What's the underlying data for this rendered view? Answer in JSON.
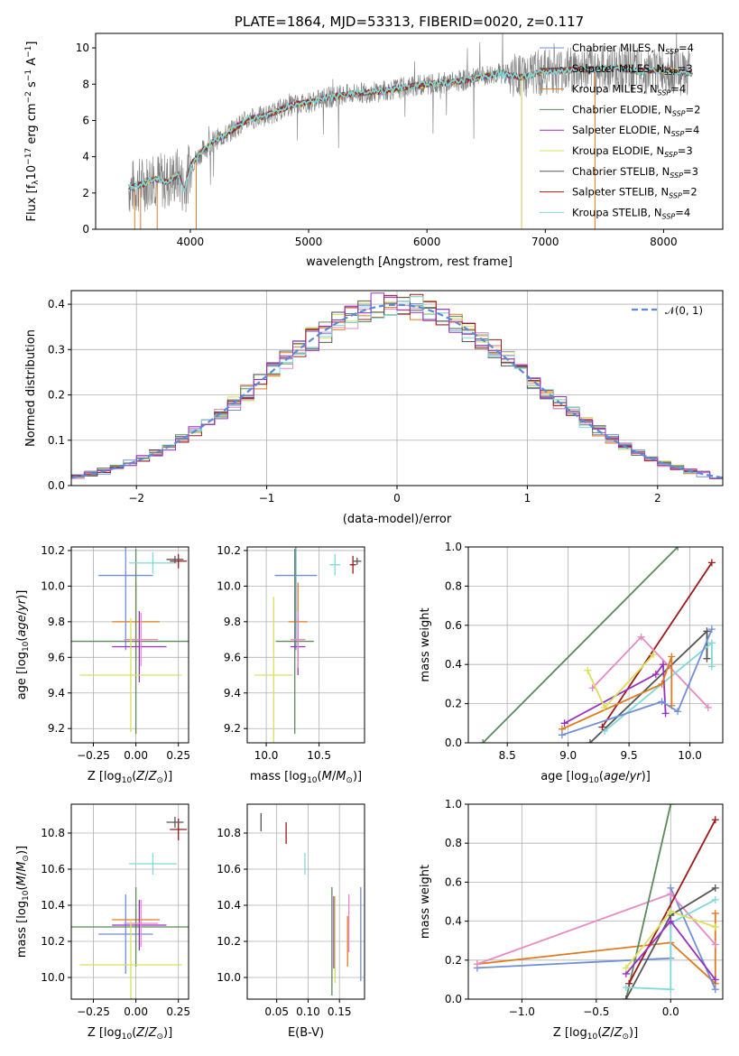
{
  "chart_data": [
    {
      "type": "line",
      "title": "PLATE=1864, MJD=53313, FIBERID=0020, z=0.117",
      "xlabel": "wavelength [Angstrom, rest frame]",
      "ylabel": "Flux [f_λ10^-17 erg cm^-2 s^-1 A^-1]",
      "xlim": [
        3200,
        8500
      ],
      "ylim": [
        0,
        10.8
      ],
      "xticks": [
        "4000",
        "5000",
        "6000",
        "7000",
        "8000"
      ],
      "yticks": [
        "0",
        "2",
        "4",
        "6",
        "8",
        "10"
      ],
      "spectrum_x": [
        3500,
        3600,
        3700,
        3800,
        3900,
        3950,
        4000,
        4100,
        4200,
        4300,
        4400,
        4500,
        4600,
        4700,
        4800,
        4900,
        5000,
        5200,
        5400,
        5600,
        5800,
        6000,
        6200,
        6400,
        6600,
        6800,
        7000,
        7200,
        7400,
        7600,
        7800,
        8000,
        8200
      ],
      "spectrum_y": [
        2.3,
        2.5,
        2.8,
        2.6,
        3.0,
        2.2,
        3.5,
        4.3,
        4.9,
        5.2,
        5.7,
        6.1,
        6.2,
        6.4,
        6.7,
        6.9,
        7.0,
        7.3,
        7.5,
        7.6,
        7.8,
        8.0,
        8.1,
        8.3,
        8.6,
        8.4,
        8.7,
        8.8,
        8.8,
        8.9,
        8.7,
        8.8,
        8.6
      ],
      "legend_position": "upper right",
      "legend": [
        {
          "label": "Chabrier MILES, N_SSP=4",
          "text": "Chabrier MILES, N",
          "sub": "SSP",
          "tail": "=4",
          "color": "#6f8fd8"
        },
        {
          "label": "Salpeter MILES, N_SSP=3",
          "text": "Salpeter MILES, N",
          "sub": "SSP",
          "tail": "=3",
          "color": "#4a4a4a"
        },
        {
          "label": "Kroupa MILES, N_SSP=4",
          "text": "Kroupa MILES, N",
          "sub": "SSP",
          "tail": "=4",
          "color": "#e07a1f"
        },
        {
          "label": "Chabrier ELODIE, N_SSP=2",
          "text": "Chabrier ELODIE, N",
          "sub": "SSP",
          "tail": "=2",
          "color": "#5b8a5b"
        },
        {
          "label": "Salpeter ELODIE, N_SSP=4",
          "text": "Salpeter ELODIE, N",
          "sub": "SSP",
          "tail": "=4",
          "color": "#9b30c0"
        },
        {
          "label": "Kroupa ELODIE, N_SSP=3",
          "text": "Kroupa ELODIE, N",
          "sub": "SSP",
          "tail": "=3",
          "color": "#d9e05a"
        },
        {
          "label": "Chabrier STELIB, N_SSP=3",
          "text": "Chabrier STELIB, N",
          "sub": "SSP",
          "tail": "=3",
          "color": "#555555"
        },
        {
          "label": "Salpeter STELIB, N_SSP=2",
          "text": "Salpeter STELIB, N",
          "sub": "SSP",
          "tail": "=2",
          "color": "#a01818"
        },
        {
          "label": "Kroupa STELIB, N_SSP=4",
          "text": "Kroupa STELIB, N",
          "sub": "SSP",
          "tail": "=4",
          "color": "#80d8d8"
        }
      ]
    },
    {
      "type": "line",
      "xlabel": "(data-model)/error",
      "ylabel": "Normed distribution",
      "xlim": [
        -2.5,
        2.5
      ],
      "ylim": [
        0,
        0.43
      ],
      "xticks": [
        "−2",
        "−1",
        "0",
        "1",
        "2"
      ],
      "yticks": [
        "0.0",
        "0.1",
        "0.2",
        "0.3",
        "0.4"
      ],
      "grid": true,
      "legend_position": "upper right",
      "legend": [
        {
          "label": "N(0,1)",
          "text": "𝒩(0, 1)",
          "color": "#5b8ad8"
        }
      ],
      "series_colors": [
        "#6f8fd8",
        "#e07a1f",
        "#5b8a5b",
        "#d9e05a",
        "#e78ac3",
        "#a01818",
        "#555555",
        "#80d8d8",
        "#9b30c0"
      ]
    },
    {
      "type": "scatter",
      "xlabel": "Z [log10(Z/Z⊙)]",
      "ylabel": "age  [log10(age/yr)]",
      "xlim": [
        -0.38,
        0.31
      ],
      "ylim": [
        9.12,
        10.22
      ],
      "xticks": [
        "−0.25",
        "0.00",
        "0.25"
      ],
      "yticks": [
        "9.2",
        "9.4",
        "9.6",
        "9.8",
        "10.0",
        "10.2"
      ],
      "grid": true,
      "points": [
        {
          "color": "#6f8fd8",
          "x": -0.06,
          "xe": 0.16,
          "y": 10.06,
          "ye": 0.42
        },
        {
          "color": "#e07a1f",
          "x": 0.0,
          "xe": 0.14,
          "y": 9.8,
          "ye": 0.22
        },
        {
          "color": "#5b8a5b",
          "x": 0.0,
          "xe": 0.39,
          "y": 9.69,
          "ye": 0.52
        },
        {
          "color": "#9b30c0",
          "x": 0.02,
          "xe": 0.16,
          "y": 9.66,
          "ye": 0.2
        },
        {
          "color": "#e78ac3",
          "x": 0.03,
          "xe": 0.1,
          "y": 9.7,
          "ye": 0.15
        },
        {
          "color": "#d9e05a",
          "x": -0.03,
          "xe": 0.3,
          "y": 9.5,
          "ye": 0.32
        },
        {
          "color": "#80d8d8",
          "x": 0.1,
          "xe": 0.14,
          "y": 10.13,
          "ye": 0.06
        },
        {
          "color": "#a01818",
          "x": 0.25,
          "xe": 0.05,
          "y": 10.14,
          "ye": 0.04
        },
        {
          "color": "#555555",
          "x": 0.23,
          "xe": 0.05,
          "y": 10.15,
          "ye": 0.02
        }
      ]
    },
    {
      "type": "scatter",
      "xlabel": "mass [log10(M/M⊙)]",
      "ylabel": "",
      "xlim": [
        9.82,
        10.93
      ],
      "ylim": [
        9.12,
        10.22
      ],
      "xticks": [
        "10.0",
        "10.5"
      ],
      "yticks": [
        "9.2",
        "9.4",
        "9.6",
        "9.8",
        "10.0",
        "10.2"
      ],
      "grid": true,
      "points": [
        {
          "color": "#6f8fd8",
          "x": 10.28,
          "xe": 0.2,
          "y": 10.06,
          "ye": 0.42
        },
        {
          "color": "#e07a1f",
          "x": 10.3,
          "xe": 0.09,
          "y": 9.8,
          "ye": 0.22
        },
        {
          "color": "#5b8a5b",
          "x": 10.27,
          "xe": 0.18,
          "y": 9.69,
          "ye": 0.52
        },
        {
          "color": "#9b30c0",
          "x": 10.3,
          "xe": 0.07,
          "y": 9.66,
          "ye": 0.16
        },
        {
          "color": "#e78ac3",
          "x": 10.3,
          "xe": 0.07,
          "y": 9.7,
          "ye": 0.16
        },
        {
          "color": "#d9e05a",
          "x": 10.07,
          "xe": 0.18,
          "y": 9.5,
          "ye": 0.44
        },
        {
          "color": "#80d8d8",
          "x": 10.65,
          "xe": 0.05,
          "y": 10.12,
          "ye": 0.06
        },
        {
          "color": "#a01818",
          "x": 10.82,
          "xe": 0.03,
          "y": 10.12,
          "ye": 0.05
        },
        {
          "color": "#555555",
          "x": 10.86,
          "xe": 0.04,
          "y": 10.14,
          "ye": 0.02
        }
      ]
    },
    {
      "type": "line",
      "xlabel": "age  [log10(age/yr)]",
      "ylabel": "mass weight",
      "xlim": [
        8.18,
        10.27
      ],
      "ylim": [
        0,
        1.0
      ],
      "xticks": [
        "8.5",
        "9.0",
        "9.5",
        "10.0"
      ],
      "yticks": [
        "0.0",
        "0.2",
        "0.4",
        "0.6",
        "0.8",
        "1.0"
      ],
      "grid": true,
      "series": [
        {
          "color": "#5b8a5b",
          "x": [
            8.3,
            9.9
          ],
          "y": [
            0.0,
            1.0
          ]
        },
        {
          "color": "#a01818",
          "x": [
            9.28,
            10.18
          ],
          "y": [
            0.08,
            0.92
          ]
        },
        {
          "color": "#555555",
          "x": [
            9.18,
            10.14,
            10.14
          ],
          "y": [
            0.0,
            0.57,
            0.43
          ]
        },
        {
          "color": "#e78ac3",
          "x": [
            9.2,
            9.6,
            10.15
          ],
          "y": [
            0.28,
            0.54,
            0.18
          ]
        },
        {
          "color": "#80d8d8",
          "x": [
            9.3,
            10.18,
            10.18
          ],
          "y": [
            0.06,
            0.51,
            0.39
          ]
        },
        {
          "color": "#9b30c0",
          "x": [
            8.97,
            9.72,
            9.78,
            9.8
          ],
          "y": [
            0.1,
            0.35,
            0.4,
            0.15
          ]
        },
        {
          "color": "#e07a1f",
          "x": [
            8.95,
            9.77,
            9.85,
            9.85
          ],
          "y": [
            0.07,
            0.3,
            0.44,
            0.19
          ]
        },
        {
          "color": "#d9e05a",
          "x": [
            9.16,
            9.3,
            9.7
          ],
          "y": [
            0.37,
            0.18,
            0.45
          ]
        },
        {
          "color": "#6f8fd8",
          "x": [
            8.95,
            9.77,
            9.9,
            10.18
          ],
          "y": [
            0.04,
            0.21,
            0.16,
            0.58
          ]
        }
      ]
    },
    {
      "type": "scatter",
      "xlabel": "Z [log10(Z/Z⊙)]",
      "ylabel": "mass [log10(M/M⊙)]",
      "xlim": [
        -0.38,
        0.31
      ],
      "ylim": [
        9.88,
        10.96
      ],
      "xticks": [
        "−0.25",
        "0.00",
        "0.25"
      ],
      "yticks": [
        "10.0",
        "10.2",
        "10.4",
        "10.6",
        "10.8"
      ],
      "grid": true,
      "points": [
        {
          "color": "#6f8fd8",
          "x": -0.06,
          "xe": 0.16,
          "y": 10.24,
          "ye": 0.22
        },
        {
          "color": "#e07a1f",
          "x": 0.0,
          "xe": 0.14,
          "y": 10.32,
          "ye": 0.06
        },
        {
          "color": "#5b8a5b",
          "x": 0.0,
          "xe": 0.39,
          "y": 10.28,
          "ye": 0.22
        },
        {
          "color": "#9b30c0",
          "x": 0.02,
          "xe": 0.16,
          "y": 10.29,
          "ye": 0.14
        },
        {
          "color": "#e78ac3",
          "x": 0.03,
          "xe": 0.1,
          "y": 10.3,
          "ye": 0.13
        },
        {
          "color": "#d9e05a",
          "x": -0.03,
          "xe": 0.3,
          "y": 10.07,
          "ye": 0.25
        },
        {
          "color": "#80d8d8",
          "x": 0.1,
          "xe": 0.14,
          "y": 10.63,
          "ye": 0.06
        },
        {
          "color": "#a01818",
          "x": 0.25,
          "xe": 0.05,
          "y": 10.82,
          "ye": 0.06
        },
        {
          "color": "#555555",
          "x": 0.23,
          "xe": 0.05,
          "y": 10.86,
          "ye": 0.03
        }
      ]
    },
    {
      "type": "scatter",
      "xlabel": "E(B-V)",
      "ylabel": "",
      "xlim": [
        0.003,
        0.19
      ],
      "ylim": [
        9.88,
        10.96
      ],
      "xticks": [
        "0.05",
        "0.10",
        "0.15"
      ],
      "yticks": [
        "10.0",
        "10.2",
        "10.4",
        "10.6",
        "10.8"
      ],
      "grid": true,
      "points": [
        {
          "color": "#555555",
          "x": 0.025,
          "y": 10.86,
          "ye": 0.05
        },
        {
          "color": "#a01818",
          "x": 0.065,
          "y": 10.8,
          "ye": 0.06
        },
        {
          "color": "#80d8d8",
          "x": 0.095,
          "y": 10.63,
          "ye": 0.06
        },
        {
          "color": "#5b8a5b",
          "x": 0.138,
          "y": 10.2,
          "ye": 0.3
        },
        {
          "color": "#9b30c0",
          "x": 0.141,
          "y": 10.25,
          "ye": 0.2
        },
        {
          "color": "#d9e05a",
          "x": 0.143,
          "y": 10.21,
          "ye": 0.24
        },
        {
          "color": "#e78ac3",
          "x": 0.165,
          "y": 10.3,
          "ye": 0.16
        },
        {
          "color": "#e07a1f",
          "x": 0.163,
          "y": 10.2,
          "ye": 0.14
        },
        {
          "color": "#6f8fd8",
          "x": 0.184,
          "y": 10.24,
          "ye": 0.26
        }
      ]
    },
    {
      "type": "line",
      "xlabel": "Z [log10(Z/Z⊙)]",
      "ylabel": "mass weight",
      "xlim": [
        -1.36,
        0.35
      ],
      "ylim": [
        0,
        1.0
      ],
      "xticks": [
        "−1.0",
        "−0.5",
        "0.0"
      ],
      "yticks": [
        "0.0",
        "0.2",
        "0.4",
        "0.6",
        "0.8",
        "1.0"
      ],
      "grid": true,
      "series": [
        {
          "color": "#e07a1f",
          "x": [
            -1.3,
            0.0,
            0.3,
            0.3
          ],
          "y": [
            0.18,
            0.29,
            0.08,
            0.44
          ]
        },
        {
          "color": "#6f8fd8",
          "x": [
            -1.3,
            0.0,
            0.0,
            0.3
          ],
          "y": [
            0.16,
            0.21,
            0.57,
            0.05
          ]
        },
        {
          "color": "#e78ac3",
          "x": [
            -1.3,
            0.0,
            0.3
          ],
          "y": [
            0.18,
            0.54,
            0.28
          ]
        },
        {
          "color": "#5b8a5b",
          "x": [
            -0.3,
            0.0
          ],
          "y": [
            0.0,
            1.0
          ]
        },
        {
          "color": "#a01818",
          "x": [
            -0.28,
            0.3
          ],
          "y": [
            0.08,
            0.92
          ]
        },
        {
          "color": "#555555",
          "x": [
            -0.3,
            0.0,
            0.3
          ],
          "y": [
            0.0,
            0.43,
            0.57
          ]
        },
        {
          "color": "#80d8d8",
          "x": [
            -0.3,
            0.0,
            0.0,
            0.3
          ],
          "y": [
            0.06,
            0.05,
            0.39,
            0.51
          ]
        },
        {
          "color": "#9b30c0",
          "x": [
            -0.3,
            0.0,
            0.3
          ],
          "y": [
            0.13,
            0.4,
            0.1
          ]
        },
        {
          "color": "#d9e05a",
          "x": [
            -0.3,
            0.0,
            0.3
          ],
          "y": [
            0.16,
            0.45,
            0.37
          ]
        }
      ]
    }
  ]
}
